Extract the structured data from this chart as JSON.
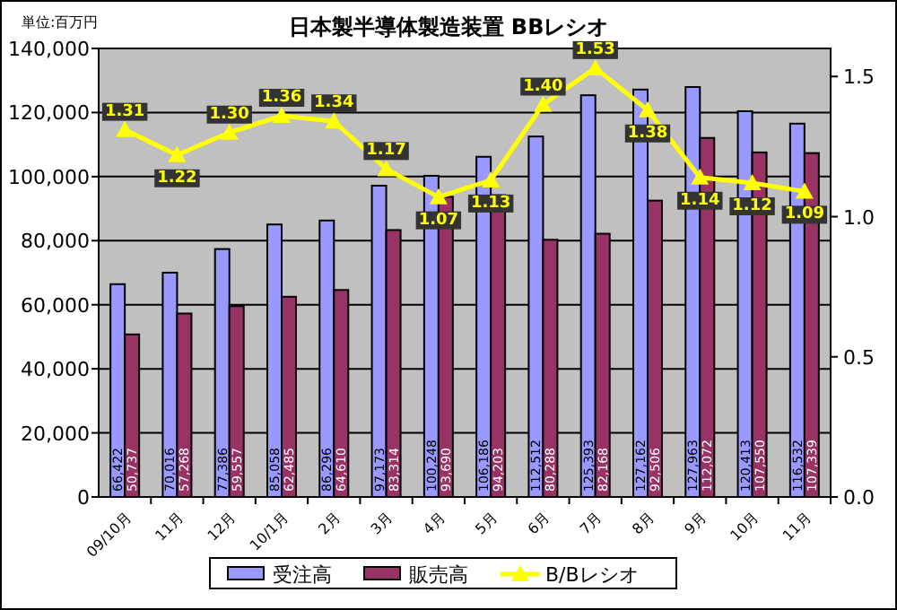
{
  "chart_data": {
    "type": "bar",
    "title": "日本製半導体製造装置 BBレシオ",
    "annotations": [
      "単位:百万円"
    ],
    "categories": [
      "09/10月",
      "11月",
      "12月",
      "10/1月",
      "2月",
      "3月",
      "4月",
      "5月",
      "6月",
      "7月",
      "8月",
      "9月",
      "10月",
      "11月"
    ],
    "series": [
      {
        "name": "受注高",
        "color": "#9999ff",
        "values": [
          66422,
          70016,
          77386,
          85058,
          86296,
          97173,
          100248,
          106186,
          112512,
          125393,
          127162,
          127963,
          120413,
          116532
        ],
        "value_labels": [
          "66,422",
          "70,016",
          "77,386",
          "85,058",
          "86,296",
          "97,173",
          "100,248",
          "106,186",
          "112,512",
          "125,393",
          "127,162",
          "127,963",
          "120,413",
          "116,532"
        ]
      },
      {
        "name": "販売高",
        "color": "#993366",
        "values": [
          50737,
          57268,
          59557,
          62485,
          64610,
          83314,
          93690,
          94203,
          80288,
          82168,
          92506,
          112072,
          107550,
          107339
        ],
        "value_labels": [
          "50,737",
          "57,268",
          "59,557",
          "62,485",
          "64,610",
          "83,314",
          "93,690",
          "94,203",
          "80,288",
          "82,168",
          "92,506",
          "112,072",
          "107,550",
          "107,339"
        ]
      },
      {
        "name": "B/Bレシオ",
        "type": "line",
        "axis": "y2",
        "color": "#ffff00",
        "values": [
          1.31,
          1.22,
          1.3,
          1.36,
          1.34,
          1.17,
          1.07,
          1.13,
          1.4,
          1.53,
          1.38,
          1.14,
          1.12,
          1.09
        ],
        "value_labels": [
          "1.31",
          "1.22",
          "1.30",
          "1.36",
          "1.34",
          "1.17",
          "1.07",
          "1.13",
          "1.40",
          "1.53",
          "1.38",
          "1.14",
          "1.12",
          "1.09"
        ]
      }
    ],
    "ylim": [
      0,
      140000
    ],
    "yticks": [
      {
        "value": 0,
        "label": "0"
      },
      {
        "value": 20000,
        "label": "20,000"
      },
      {
        "value": 40000,
        "label": "40,000"
      },
      {
        "value": 60000,
        "label": "60,000"
      },
      {
        "value": 80000,
        "label": "80,000"
      },
      {
        "value": 100000,
        "label": "100,000"
      },
      {
        "value": 120000,
        "label": "120,000"
      },
      {
        "value": 140000,
        "label": "140,000"
      }
    ],
    "y2lim": [
      0,
      1.6
    ],
    "y2ticks": [
      {
        "value": 0,
        "label": "0.0"
      },
      {
        "value": 0.5,
        "label": "0.5"
      },
      {
        "value": 1,
        "label": "1.0"
      },
      {
        "value": 1.5,
        "label": "1.5"
      }
    ],
    "grid": "y",
    "legend": "bottom",
    "marker": "triangle"
  }
}
